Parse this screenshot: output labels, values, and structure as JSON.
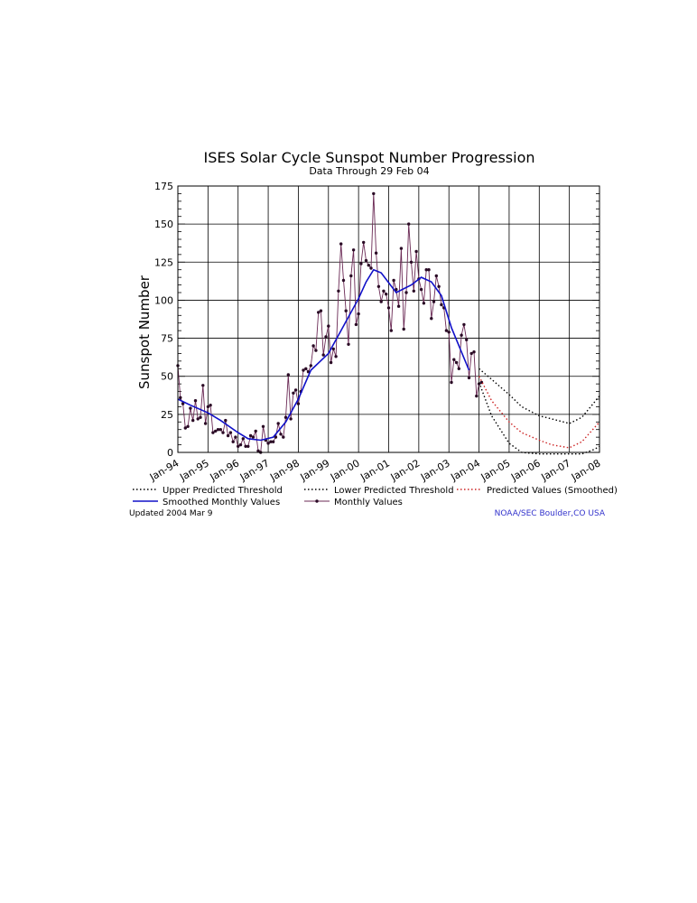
{
  "chart_data": {
    "type": "line",
    "title": "ISES Solar Cycle Sunspot Number Progression",
    "subtitle": "Data Through 29 Feb 04",
    "ylabel": "Sunspot Number",
    "xlabel": "",
    "ylim": [
      0,
      175
    ],
    "xlim": [
      "Jan-94",
      "Jan-08"
    ],
    "yticks": [
      0,
      25,
      50,
      75,
      100,
      125,
      150,
      175
    ],
    "xticks": [
      "Jan-94",
      "Jan-95",
      "Jan-96",
      "Jan-97",
      "Jan-98",
      "Jan-99",
      "Jan-00",
      "Jan-01",
      "Jan-02",
      "Jan-03",
      "Jan-04",
      "Jan-05",
      "Jan-06",
      "Jan-07",
      "Jan-08"
    ],
    "grid": true,
    "legend_position": "bottom",
    "series": [
      {
        "name": "Monthly Values",
        "color": "#6b2a55",
        "style": "solid-with-markers",
        "x": [
          "1994-01",
          "1994-02",
          "1994-03",
          "1994-04",
          "1994-05",
          "1994-06",
          "1994-07",
          "1994-08",
          "1994-09",
          "1994-10",
          "1994-11",
          "1994-12",
          "1995-01",
          "1995-02",
          "1995-03",
          "1995-04",
          "1995-05",
          "1995-06",
          "1995-07",
          "1995-08",
          "1995-09",
          "1995-10",
          "1995-11",
          "1995-12",
          "1996-01",
          "1996-02",
          "1996-03",
          "1996-04",
          "1996-05",
          "1996-06",
          "1996-07",
          "1996-08",
          "1996-09",
          "1996-10",
          "1996-11",
          "1996-12",
          "1997-01",
          "1997-02",
          "1997-03",
          "1997-04",
          "1997-05",
          "1997-06",
          "1997-07",
          "1997-08",
          "1997-09",
          "1997-10",
          "1997-11",
          "1997-12",
          "1998-01",
          "1998-02",
          "1998-03",
          "1998-04",
          "1998-05",
          "1998-06",
          "1998-07",
          "1998-08",
          "1998-09",
          "1998-10",
          "1998-11",
          "1998-12",
          "1999-01",
          "1999-02",
          "1999-03",
          "1999-04",
          "1999-05",
          "1999-06",
          "1999-07",
          "1999-08",
          "1999-09",
          "1999-10",
          "1999-11",
          "1999-12",
          "2000-01",
          "2000-02",
          "2000-03",
          "2000-04",
          "2000-05",
          "2000-06",
          "2000-07",
          "2000-08",
          "2000-09",
          "2000-10",
          "2000-11",
          "2000-12",
          "2001-01",
          "2001-02",
          "2001-03",
          "2001-04",
          "2001-05",
          "2001-06",
          "2001-07",
          "2001-08",
          "2001-09",
          "2001-10",
          "2001-11",
          "2001-12",
          "2002-01",
          "2002-02",
          "2002-03",
          "2002-04",
          "2002-05",
          "2002-06",
          "2002-07",
          "2002-08",
          "2002-09",
          "2002-10",
          "2002-11",
          "2002-12",
          "2003-01",
          "2003-02",
          "2003-03",
          "2003-04",
          "2003-05",
          "2003-06",
          "2003-07",
          "2003-08",
          "2003-09",
          "2003-10",
          "2003-11",
          "2003-12",
          "2004-01",
          "2004-02"
        ],
        "values": [
          57,
          36,
          32,
          16,
          17,
          29,
          21,
          34,
          22,
          23,
          44,
          19,
          30,
          31,
          13,
          14,
          15,
          15,
          13,
          21,
          11,
          13,
          7,
          10,
          4,
          5,
          9,
          4,
          4,
          11,
          10,
          14,
          1,
          0,
          17,
          8,
          6,
          7,
          7,
          10,
          19,
          12,
          10,
          23,
          51,
          22,
          39,
          41,
          32,
          40,
          54,
          55,
          53,
          57,
          70,
          67,
          92,
          93,
          64,
          76,
          83,
          59,
          68,
          63,
          106,
          137,
          113,
          93,
          71,
          116,
          133,
          84,
          91,
          124,
          138,
          126,
          123,
          121,
          170,
          131,
          109,
          99,
          106,
          104,
          95,
          80,
          113,
          107,
          96,
          134,
          81,
          105,
          150,
          125,
          106,
          132,
          114,
          107,
          98,
          120,
          120,
          88,
          99,
          116,
          109,
          97,
          95,
          80,
          79,
          46,
          61,
          59,
          55,
          77,
          84,
          74,
          49,
          65,
          66,
          37,
          45,
          46
        ]
      },
      {
        "name": "Smoothed Monthly Values",
        "color": "#1010c8",
        "style": "solid",
        "x": [
          "1994-01",
          "1994-06",
          "1995-01",
          "1995-06",
          "1996-01",
          "1996-05",
          "1996-10",
          "1997-03",
          "1997-08",
          "1998-01",
          "1998-06",
          "1999-01",
          "1999-06",
          "2000-01",
          "2000-04",
          "2000-07",
          "2000-10",
          "2001-04",
          "2001-10",
          "2002-02",
          "2002-06",
          "2002-10",
          "2003-02",
          "2003-06",
          "2003-09"
        ],
        "values": [
          35,
          31,
          26,
          21,
          13,
          9,
          8,
          10,
          20,
          35,
          54,
          65,
          80,
          101,
          112,
          120,
          118,
          105,
          110,
          115,
          112,
          103,
          82,
          66,
          54
        ]
      },
      {
        "name": "Predicted Values (Smoothed)",
        "color": "#cc2222",
        "style": "dotted",
        "x": [
          "2004-01",
          "2004-06",
          "2005-01",
          "2005-06",
          "2006-01",
          "2006-06",
          "2007-01",
          "2007-06",
          "2008-01"
        ],
        "values": [
          50,
          34,
          20,
          13,
          8,
          5,
          3,
          7,
          20
        ]
      },
      {
        "name": "Upper Predicted Threshold",
        "color": "#000000",
        "style": "dotted",
        "x": [
          "2004-01",
          "2004-06",
          "2005-01",
          "2005-06",
          "2006-01",
          "2006-06",
          "2007-01",
          "2007-06",
          "2008-01"
        ],
        "values": [
          55,
          48,
          38,
          30,
          24,
          22,
          19,
          23,
          37
        ]
      },
      {
        "name": "Lower Predicted Threshold",
        "color": "#000000",
        "style": "dotted",
        "x": [
          "2004-01",
          "2004-06",
          "2005-01",
          "2005-06",
          "2006-01",
          "2007-01",
          "2007-06",
          "2007-11",
          "2008-01"
        ],
        "values": [
          46,
          24,
          6,
          0,
          -1,
          -1,
          -1,
          2,
          4
        ]
      }
    ],
    "legend": [
      {
        "label": "Upper Predicted Threshold",
        "color": "#000000",
        "style": "dotted"
      },
      {
        "label": "Lower Predicted Threshold",
        "color": "#000000",
        "style": "dotted"
      },
      {
        "label": "Predicted Values (Smoothed)",
        "color": "#cc2222",
        "style": "dotted"
      },
      {
        "label": "Smoothed Monthly Values",
        "color": "#1010c8",
        "style": "solid"
      },
      {
        "label": "Monthly Values",
        "color": "#6b2a55",
        "style": "solid-with-markers"
      }
    ]
  },
  "footer": {
    "updated": "Updated 2004 Mar  9",
    "source": "NOAA/SEC Boulder,CO USA",
    "source_color": "#3333cc"
  }
}
